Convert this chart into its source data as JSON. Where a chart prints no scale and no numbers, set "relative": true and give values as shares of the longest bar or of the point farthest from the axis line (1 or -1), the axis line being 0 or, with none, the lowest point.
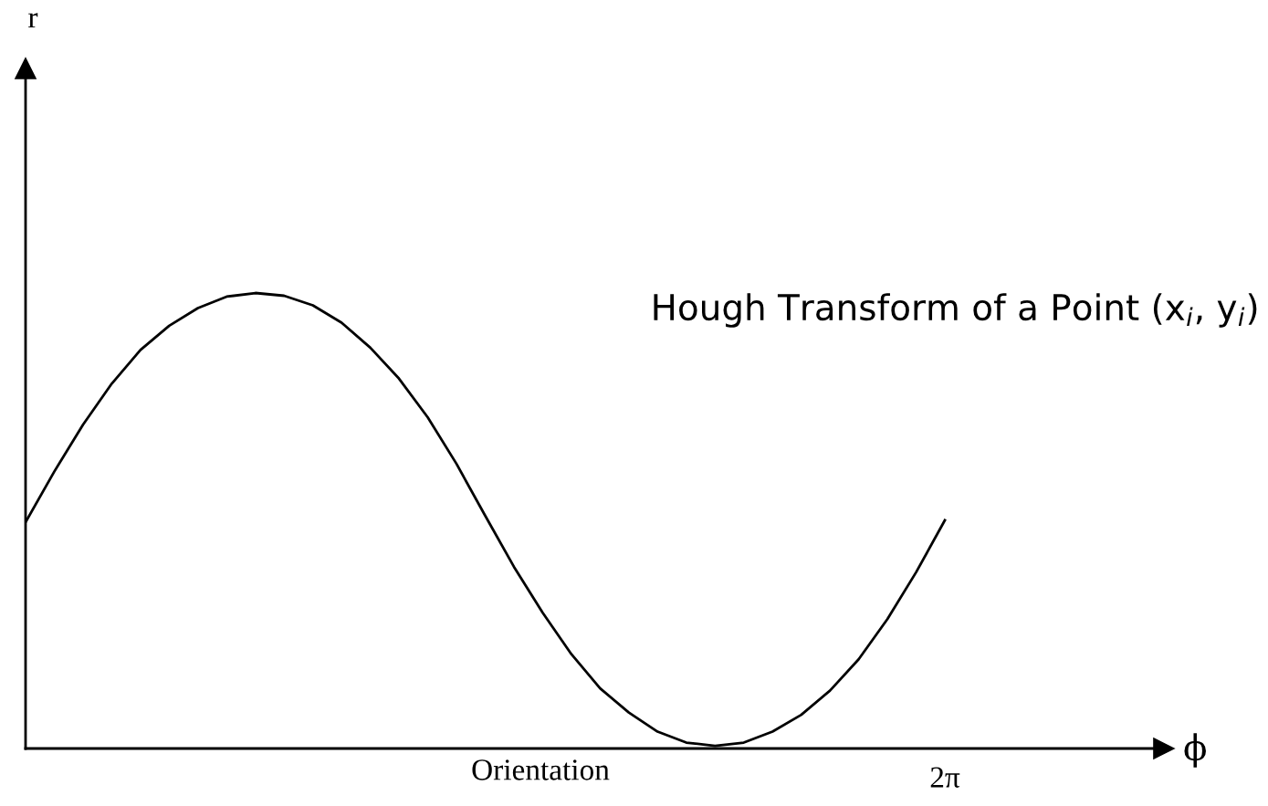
{
  "chart_data": {
    "type": "line",
    "relative": true,
    "xlabel": "Orientation",
    "annotations": [
      "Hough Transform of a Point (x$_{i}$, y$_{i}$)",
      "ϕ",
      "2π",
      "r"
    ],
    "categories": [
      null,
      null,
      null,
      null,
      null,
      null,
      null,
      null,
      null,
      null,
      null,
      null,
      null,
      null,
      null,
      null,
      null,
      null,
      null,
      null,
      null,
      null,
      null,
      null,
      null,
      null,
      null,
      null,
      null,
      null,
      null,
      null,
      null
    ],
    "series": [
      {
        "color": "#000000",
        "values": [
          0.497,
          0.608,
          0.711,
          0.801,
          0.875,
          0.928,
          0.967,
          0.992,
          1.0,
          0.994,
          0.973,
          0.935,
          0.88,
          0.812,
          0.727,
          0.625,
          0.511,
          0.399,
          0.298,
          0.207,
          0.132,
          0.079,
          0.037,
          0.013,
          0.006,
          0.013,
          0.037,
          0.074,
          0.127,
          0.196,
          0.284,
          0.387,
          0.501
        ]
      }
    ],
    "marker": "none",
    "line_style": "solid"
  }
}
